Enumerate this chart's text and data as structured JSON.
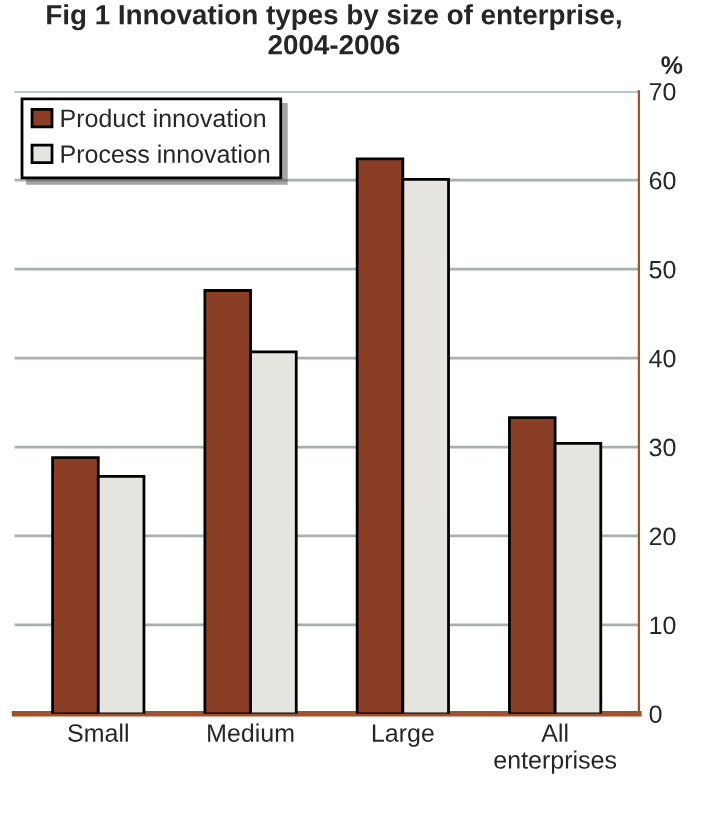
{
  "chart_data": {
    "type": "bar",
    "title": "Fig 1 Innovation types by size of enterprise, 2004-2006",
    "ylabel": "%",
    "categories": [
      "Small",
      "Medium",
      "Large",
      "All\nenterprises"
    ],
    "series": [
      {
        "name": "Product innovation",
        "color": "#8b3e26",
        "values": [
          28.8,
          47.6,
          62.4,
          33.3
        ]
      },
      {
        "name": "Process innovation",
        "color": "#e6e4de",
        "values": [
          26.7,
          40.7,
          60.1,
          30.4
        ]
      }
    ],
    "ylim": [
      0,
      70
    ],
    "yticks": [
      0,
      10,
      20,
      30,
      40,
      50,
      60,
      70
    ],
    "grid": "y",
    "legend": "top left"
  }
}
